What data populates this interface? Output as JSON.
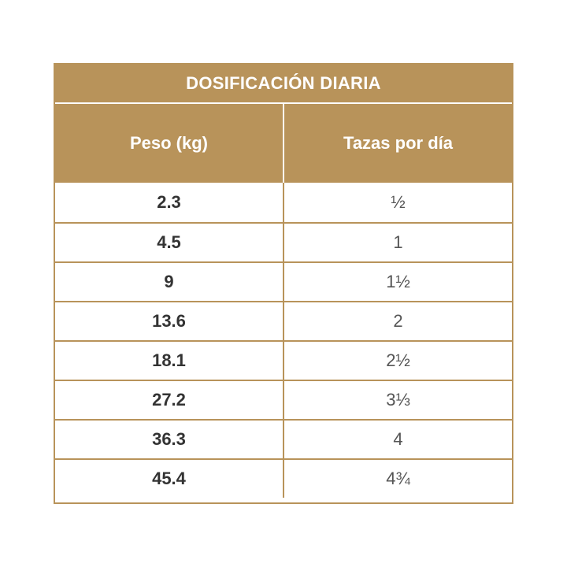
{
  "table": {
    "title": "DOSIFICACIÓN DIARIA",
    "headers": {
      "weight": "Peso (kg)",
      "cups": "Tazas por día"
    },
    "rows": [
      {
        "weight": "2.3",
        "cups": "½"
      },
      {
        "weight": "4.5",
        "cups": "1"
      },
      {
        "weight": "9",
        "cups": "1½"
      },
      {
        "weight": "13.6",
        "cups": "2"
      },
      {
        "weight": "18.1",
        "cups": "2½"
      },
      {
        "weight": "27.2",
        "cups": "3⅓"
      },
      {
        "weight": "36.3",
        "cups": "4"
      },
      {
        "weight": "45.4",
        "cups": "4¾"
      }
    ]
  },
  "colors": {
    "accent": "#b8935a",
    "text": "#333333"
  }
}
